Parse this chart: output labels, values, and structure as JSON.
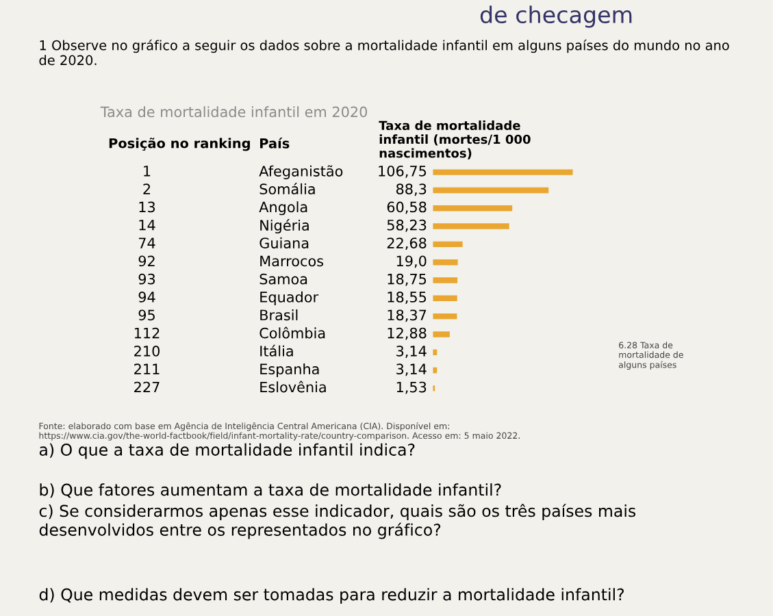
{
  "chart_data": {
    "type": "bar",
    "orientation": "horizontal",
    "title": "Taxa de mortalidade infantil em 2020",
    "categories": [
      "Afeganistão",
      "Somália",
      "Angola",
      "Nigéria",
      "Guiana",
      "Marrocos",
      "Samoa",
      "Equador",
      "Brasil",
      "Colômbia",
      "Itália",
      "Espanha",
      "Eslovênia"
    ],
    "values": [
      106.75,
      88.3,
      60.58,
      58.23,
      22.68,
      19.0,
      18.75,
      18.55,
      18.37,
      12.88,
      3.14,
      3.14,
      1.53
    ],
    "value_labels": [
      "106,75",
      "88,3",
      "60,58",
      "58,23",
      "22,68",
      "19,0",
      "18,75",
      "18,55",
      "18,37",
      "12,88",
      "3,14",
      "3,14",
      "1,53"
    ],
    "color": "#e9a630",
    "tick_labels": false,
    "grid": false,
    "legend": false,
    "annotations": [
      "de checagem",
      "1 Observe no gráfico a seguir os dados sobre a mortalidade infantil em alguns países do mundo no ano de 2020.",
      "Posição no ranking",
      "País",
      "Taxa de mortalidade infantil (mortes/1 000 nascimentos)",
      "Fonte: elaborado com base em Agência de Inteligência Central Americana (CIA). Disponível em: https://www.cia.gov/the-world-factbook/field/infant-mortality-rate/country-comparison. Acesso em: 5 maio 2022.",
      "6.28 Taxa de mortalidade de alguns países",
      "a) O que a taxa de mortalidade infantil indica?",
      "b) Que fatores aumentam a taxa de mortalidade infantil?",
      "c) Se considerarmos apenas esse indicador, quais são os três países mais desenvolvidos entre os representados no gráfico?",
      "d) Que medidas devem ser tomadas para reduzir a mortalidade infantil?",
      "1",
      "2",
      "13",
      "14",
      "74",
      "92",
      "93",
      "94",
      "95",
      "112",
      "210",
      "211",
      "227"
    ]
  }
}
